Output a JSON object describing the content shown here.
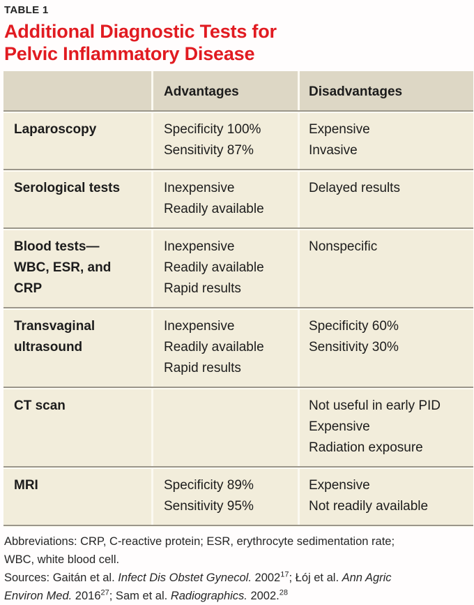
{
  "page": {
    "kicker": "TABLE 1",
    "title": {
      "line1": "Additional Diagnostic Tests for",
      "line2": "Pelvic Inflammatory Disease"
    }
  },
  "colors": {
    "title_red": "#e11b21",
    "header_bg": "#ddd7c5",
    "body_bg": "#f2eddb",
    "row_divider_gray": "#9b968a",
    "row_divider_white": "#fffdf5",
    "column_divider": "#fbf9f1",
    "text": "#1c1c1c"
  },
  "table": {
    "header": {
      "test_column_label": "",
      "advantages": "Advantages",
      "disadvantages": "Disadvantages"
    },
    "rows": [
      {
        "test_lines": [
          "Laparoscopy"
        ],
        "advantages": [
          "Specificity 100%",
          "Sensitivity 87%"
        ],
        "disadvantages": [
          "Expensive",
          "Invasive"
        ]
      },
      {
        "test_lines": [
          "Serological tests"
        ],
        "advantages": [
          "Inexpensive",
          "Readily available"
        ],
        "disadvantages": [
          "Delayed results"
        ]
      },
      {
        "test_lines": [
          "Blood tests—",
          "WBC, ESR, and",
          "CRP"
        ],
        "advantages": [
          "Inexpensive",
          "Readily available",
          "Rapid results"
        ],
        "disadvantages": [
          "Nonspecific"
        ]
      },
      {
        "test_lines": [
          "Transvaginal",
          "ultrasound"
        ],
        "advantages": [
          "Inexpensive",
          "Readily available",
          "Rapid results"
        ],
        "disadvantages": [
          "Specificity 60%",
          "Sensitivity 30%"
        ]
      },
      {
        "test_lines": [
          "CT scan"
        ],
        "advantages": [],
        "disadvantages": [
          "Not useful in early PID",
          "Expensive",
          "Radiation exposure"
        ]
      },
      {
        "test_lines": [
          "MRI"
        ],
        "advantages": [
          "Specificity 89%",
          "Sensitivity 95%"
        ],
        "disadvantages": [
          "Expensive",
          "Not readily available"
        ]
      }
    ]
  },
  "footnotes": {
    "abbreviations_lines": [
      "Abbreviations: CRP, C-reactive protein; ESR, erythrocyte sedimentation rate;",
      "WBC, white blood cell."
    ],
    "sources_lines": [
      [
        {
          "text": "Sources: Gaitán et al. ",
          "style": "normal"
        },
        {
          "text": "Infect Dis Obstet Gynecol.",
          "style": "italic"
        },
        {
          "text": " 2002",
          "style": "normal"
        },
        {
          "text": "17",
          "style": "sup"
        },
        {
          "text": "; Łój et al. ",
          "style": "normal"
        },
        {
          "text": "Ann Agric",
          "style": "italic"
        }
      ],
      [
        {
          "text": "Environ Med.",
          "style": "italic"
        },
        {
          "text": " 2016",
          "style": "normal"
        },
        {
          "text": "27",
          "style": "sup"
        },
        {
          "text": "; Sam et al. ",
          "style": "normal"
        },
        {
          "text": "Radiographics.",
          "style": "italic"
        },
        {
          "text": " 2002.",
          "style": "normal"
        },
        {
          "text": "28",
          "style": "sup"
        }
      ]
    ]
  }
}
